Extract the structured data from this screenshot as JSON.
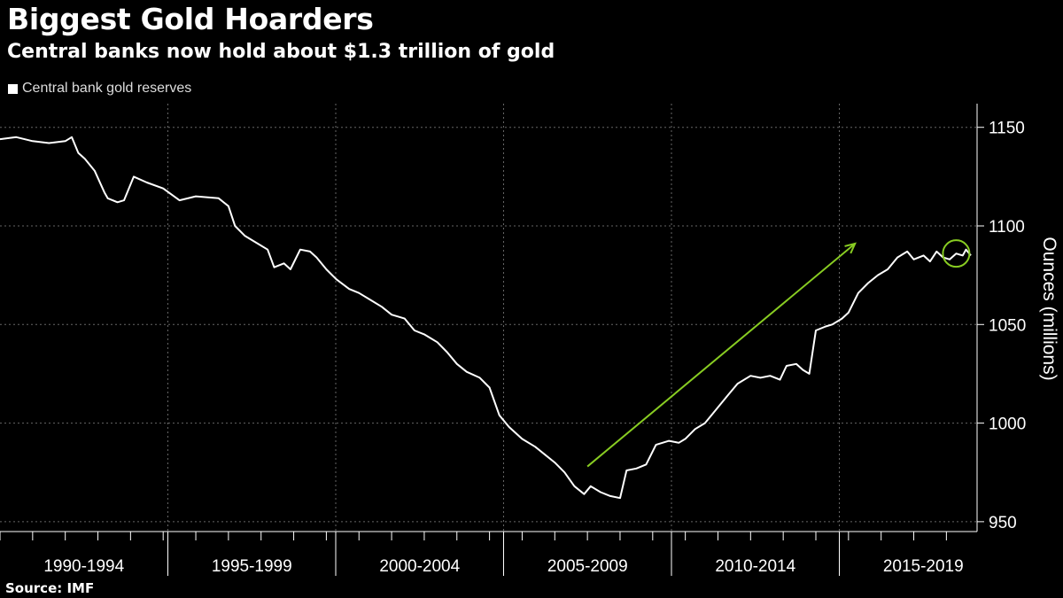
{
  "header": {
    "title": "Biggest Gold Hoarders",
    "subtitle": "Central banks now hold about $1.3 trillion of gold"
  },
  "legend": {
    "label": "Central bank gold reserves",
    "color": "#ffffff"
  },
  "footer": {
    "source": "Source: IMF"
  },
  "colors": {
    "background": "#000000",
    "series": "#ffffff",
    "annotation": "#88cc22",
    "grid": "#666666"
  },
  "chart_data": {
    "type": "line",
    "title": "Biggest Gold Hoarders",
    "subtitle": "Central banks now hold about $1.3 trillion of gold",
    "xlabel": "",
    "ylabel": "Ounces (millions)",
    "x_range": [
      1990.0,
      2019.75
    ],
    "ylim": [
      945,
      1162
    ],
    "y_ticks": [
      950,
      1000,
      1050,
      1100,
      1150
    ],
    "x_categories": [
      "1990-1994",
      "1995-1999",
      "2000-2004",
      "2005-2009",
      "2010-2014",
      "2015-2019"
    ],
    "grid": "dotted vertical and horizontal",
    "legend_position": "top-left",
    "series": [
      {
        "name": "Central bank gold reserves",
        "color": "#ffffff",
        "x": [
          1990.0,
          1990.5,
          1991.0,
          1991.5,
          1992.0,
          1992.2,
          1992.4,
          1992.6,
          1992.9,
          1993.2,
          1993.3,
          1993.6,
          1993.8,
          1994.1,
          1994.5,
          1995.0,
          1995.5,
          1996.0,
          1996.7,
          1997.0,
          1997.2,
          1997.5,
          1997.9,
          1998.2,
          1998.4,
          1998.7,
          1998.9,
          1999.2,
          1999.5,
          1999.7,
          2000.0,
          2000.3,
          2000.7,
          2001.0,
          2001.4,
          2001.7,
          2002.0,
          2002.4,
          2002.7,
          2003.0,
          2003.4,
          2003.7,
          2004.0,
          2004.3,
          2004.7,
          2005.0,
          2005.3,
          2005.6,
          2006.0,
          2006.4,
          2006.7,
          2007.0,
          2007.3,
          2007.6,
          2007.9,
          2008.1,
          2008.4,
          2008.7,
          2009.0,
          2009.2,
          2009.5,
          2009.8,
          2010.1,
          2010.5,
          2010.8,
          2011.0,
          2011.3,
          2011.6,
          2012.0,
          2012.3,
          2012.6,
          2013.0,
          2013.3,
          2013.6,
          2013.9,
          2014.1,
          2014.4,
          2014.6,
          2014.8,
          2015.0,
          2015.3,
          2015.5,
          2015.8,
          2016.0,
          2016.3,
          2016.6,
          2016.9,
          2017.2,
          2017.5,
          2017.8,
          2018.0,
          2018.3,
          2018.5,
          2018.7,
          2018.9,
          2019.1,
          2019.3,
          2019.5,
          2019.6,
          2019.75
        ],
        "values": [
          1144,
          1145,
          1143,
          1142,
          1143,
          1145,
          1137,
          1134,
          1128,
          1117,
          1114,
          1112,
          1113,
          1125,
          1122,
          1119,
          1113,
          1115,
          1114,
          1110,
          1100,
          1095,
          1091,
          1088,
          1079,
          1081,
          1078,
          1088,
          1087,
          1084,
          1078,
          1073,
          1068,
          1066,
          1062,
          1059,
          1055,
          1053,
          1047,
          1045,
          1041,
          1036,
          1030,
          1026,
          1023,
          1018,
          1004,
          998,
          992,
          988,
          984,
          980,
          975,
          968,
          964,
          968,
          965,
          963,
          962,
          976,
          977,
          979,
          989,
          991,
          990,
          992,
          997,
          1000,
          1008,
          1014,
          1020,
          1024,
          1023,
          1024,
          1022,
          1029,
          1030,
          1027,
          1025,
          1047,
          1049,
          1050,
          1053,
          1056,
          1066,
          1071,
          1075,
          1078,
          1084,
          1087,
          1083,
          1085,
          1082,
          1087,
          1084,
          1083,
          1086,
          1085,
          1088,
          1085
        ]
      }
    ],
    "annotations": [
      {
        "type": "arrow",
        "from": [
          2008.0,
          978
        ],
        "to": [
          2016.2,
          1091
        ],
        "color": "#88cc22"
      },
      {
        "type": "circle",
        "at": [
          2019.3,
          1086
        ],
        "color": "#88cc22"
      }
    ]
  }
}
